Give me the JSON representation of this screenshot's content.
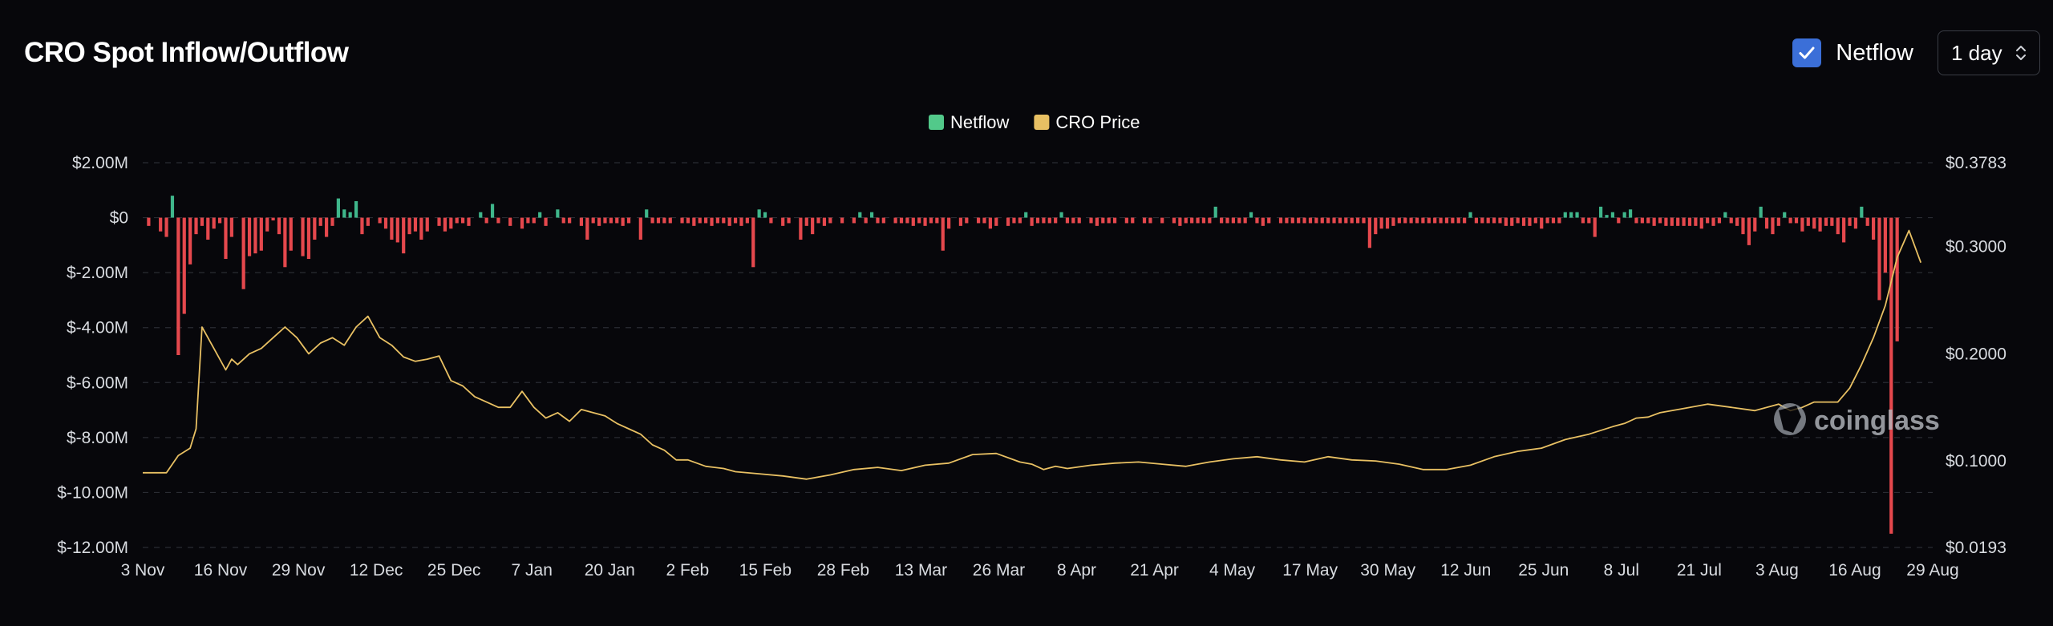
{
  "header": {
    "title": "CRO Spot Inflow/Outflow",
    "netflow_toggle_label": "Netflow",
    "netflow_checked": true,
    "interval_select_value": "1 day"
  },
  "watermark": {
    "text": "coinglass"
  },
  "colors": {
    "background": "#07070b",
    "positive_bar": "#3fb68b",
    "negative_bar": "#e5484d",
    "price_line": "#e8c063",
    "legend_netflow": "#52c98a",
    "legend_price": "#e8c063",
    "checkbox": "#3b6fd8"
  },
  "chart_data": {
    "type": "bar",
    "title": "CRO Spot Inflow/Outflow",
    "legend": {
      "placement": "top-center",
      "entries": [
        "Netflow",
        "CRO Price"
      ]
    },
    "x_tick_labels": [
      "3 Nov",
      "16 Nov",
      "29 Nov",
      "12 Dec",
      "25 Dec",
      "7 Jan",
      "20 Jan",
      "2 Feb",
      "15 Feb",
      "28 Feb",
      "13 Mar",
      "26 Mar",
      "8 Apr",
      "21 Apr",
      "4 May",
      "17 May",
      "30 May",
      "12 Jun",
      "25 Jun",
      "8 Jul",
      "21 Jul",
      "3 Aug",
      "16 Aug",
      "29 Aug"
    ],
    "y_left_tick_labels": [
      "$2.00M",
      "$0",
      "$-2.00M",
      "$-4.00M",
      "$-6.00M",
      "$-8.00M",
      "$-10.00M",
      "$-12.00M"
    ],
    "y_left_tick_values": [
      2,
      0,
      -2,
      -4,
      -6,
      -8,
      -10,
      -12
    ],
    "y_left_range": [
      -12,
      2
    ],
    "y_left_unit": "USD millions",
    "y_right_tick_labels": [
      "$0.3783",
      "$0.3000",
      "$0.2000",
      "$0.1000",
      "$0.0193"
    ],
    "y_right_tick_values": [
      0.3783,
      0.3,
      0.2,
      0.1,
      0.0193
    ],
    "y_right_range": [
      0.0193,
      0.3783
    ],
    "grid": true,
    "series": [
      {
        "name": "Netflow",
        "kind": "bar",
        "axis": "left",
        "x_day_index": [
          1,
          3,
          4,
          5,
          6,
          7,
          8,
          9,
          10,
          11,
          12,
          13,
          14,
          15,
          17,
          18,
          19,
          20,
          21,
          22,
          23,
          24,
          25,
          27,
          28,
          29,
          30,
          31,
          32,
          33,
          34,
          35,
          36,
          37,
          38,
          40,
          41,
          42,
          43,
          44,
          45,
          46,
          47,
          48,
          50,
          51,
          52,
          53,
          54,
          55,
          57,
          58,
          59,
          60,
          62,
          64,
          65,
          66,
          67,
          68,
          70,
          71,
          72,
          74,
          75,
          76,
          77,
          78,
          79,
          80,
          81,
          82,
          84,
          85,
          86,
          87,
          88,
          89,
          91,
          92,
          93,
          94,
          95,
          96,
          97,
          98,
          99,
          100,
          101,
          102,
          103,
          104,
          105,
          106,
          108,
          109,
          111,
          112,
          113,
          114,
          115,
          116,
          118,
          120,
          121,
          122,
          123,
          124,
          125,
          127,
          128,
          129,
          130,
          131,
          132,
          133,
          134,
          135,
          136,
          138,
          139,
          141,
          142,
          143,
          144,
          146,
          147,
          148,
          149,
          150,
          151,
          152,
          153,
          154,
          155,
          156,
          157,
          158,
          160,
          161,
          162,
          163,
          164,
          166,
          167,
          169,
          170,
          172,
          174,
          175,
          176,
          177,
          178,
          179,
          180,
          181,
          182,
          183,
          184,
          185,
          186,
          187,
          188,
          189,
          190,
          192,
          193,
          194,
          195,
          196,
          197,
          198,
          199,
          200,
          201,
          202,
          203,
          204,
          205,
          206,
          207,
          208,
          209,
          210,
          211,
          212,
          213,
          214,
          215,
          216,
          217,
          218,
          219,
          220,
          221,
          222,
          223,
          224,
          225,
          226,
          227,
          228,
          229,
          230,
          231,
          232,
          233,
          234,
          235,
          236,
          237,
          238,
          239,
          240,
          241,
          242,
          243,
          244,
          245,
          246,
          247,
          248,
          249,
          250,
          251,
          252,
          253,
          254,
          255,
          256,
          257,
          258,
          259,
          260,
          261,
          262,
          263,
          264,
          265,
          266,
          267,
          268,
          269,
          270,
          271,
          272,
          273,
          274,
          275,
          276,
          277,
          278,
          279,
          280,
          281,
          282,
          283,
          284,
          285,
          286,
          287,
          288,
          289,
          290,
          291,
          292,
          293,
          294,
          295,
          296,
          297,
          298,
          299,
          300,
          301,
          302
        ],
        "values": [
          -0.3,
          -0.5,
          -0.7,
          0.8,
          -5.0,
          -3.5,
          -1.7,
          -0.6,
          -0.3,
          -0.8,
          -0.4,
          -0.2,
          -1.5,
          -0.7,
          -2.6,
          -1.4,
          -1.3,
          -1.2,
          -0.5,
          -0.1,
          -0.6,
          -1.8,
          -1.2,
          -1.4,
          -1.5,
          -0.8,
          -0.3,
          -0.7,
          -0.3,
          0.7,
          0.3,
          0.2,
          0.6,
          -0.6,
          -0.3,
          -0.2,
          -0.4,
          -0.8,
          -0.9,
          -1.3,
          -0.6,
          -0.5,
          -0.8,
          -0.5,
          -0.3,
          -0.5,
          -0.4,
          -0.2,
          -0.2,
          -0.3,
          0.2,
          -0.2,
          0.5,
          -0.2,
          -0.3,
          -0.4,
          -0.2,
          -0.2,
          0.2,
          -0.3,
          0.3,
          -0.2,
          -0.2,
          -0.3,
          -0.8,
          -0.2,
          -0.3,
          -0.2,
          -0.2,
          -0.2,
          -0.3,
          -0.2,
          -0.8,
          0.3,
          -0.2,
          -0.2,
          -0.2,
          -0.2,
          -0.2,
          -0.2,
          -0.3,
          -0.2,
          -0.2,
          -0.3,
          -0.2,
          -0.2,
          -0.3,
          -0.2,
          -0.3,
          -0.2,
          -1.8,
          0.3,
          0.2,
          -0.2,
          -0.3,
          -0.2,
          -0.8,
          -0.3,
          -0.6,
          -0.2,
          -0.3,
          -0.2,
          -0.2,
          -0.2,
          0.2,
          -0.2,
          0.2,
          -0.2,
          -0.2,
          -0.2,
          -0.2,
          -0.2,
          -0.3,
          -0.2,
          -0.3,
          -0.2,
          -0.2,
          -1.2,
          -0.4,
          -0.3,
          -0.2,
          -0.2,
          -0.2,
          -0.4,
          -0.3,
          -0.3,
          -0.2,
          -0.2,
          0.2,
          -0.3,
          -0.2,
          -0.2,
          -0.2,
          -0.2,
          0.2,
          -0.2,
          -0.2,
          -0.2,
          -0.2,
          -0.3,
          -0.2,
          -0.2,
          -0.2,
          -0.2,
          -0.2,
          -0.2,
          -0.2,
          -0.2,
          -0.2,
          -0.3,
          -0.2,
          -0.2,
          -0.2,
          -0.2,
          -0.2,
          0.4,
          -0.2,
          -0.2,
          -0.2,
          -0.2,
          -0.2,
          0.2,
          -0.2,
          -0.3,
          -0.2,
          -0.2,
          -0.2,
          -0.2,
          -0.2,
          -0.2,
          -0.2,
          -0.2,
          -0.2,
          -0.2,
          -0.2,
          -0.2,
          -0.2,
          -0.2,
          -0.2,
          -0.2,
          -1.1,
          -0.6,
          -0.4,
          -0.4,
          -0.3,
          -0.2,
          -0.2,
          -0.2,
          -0.2,
          -0.2,
          -0.2,
          -0.2,
          -0.2,
          -0.2,
          -0.2,
          -0.2,
          -0.2,
          0.2,
          -0.2,
          -0.2,
          -0.2,
          -0.2,
          -0.2,
          -0.3,
          -0.3,
          -0.2,
          -0.3,
          -0.3,
          -0.2,
          -0.4,
          -0.2,
          -0.2,
          -0.2,
          0.2,
          0.2,
          0.2,
          -0.2,
          -0.2,
          -0.7,
          0.4,
          0.1,
          0.2,
          -0.2,
          0.2,
          0.3,
          -0.2,
          -0.2,
          -0.2,
          -0.3,
          -0.2,
          -0.3,
          -0.3,
          -0.3,
          -0.3,
          -0.3,
          -0.3,
          -0.4,
          -0.2,
          -0.3,
          -0.2,
          0.2,
          -0.2,
          -0.3,
          -0.6,
          -1.0,
          -0.5,
          0.4,
          -0.4,
          -0.6,
          -0.3,
          0.2,
          -0.2,
          -0.2,
          -0.5,
          -0.3,
          -0.4,
          -0.5,
          -0.3,
          -0.3,
          -0.6,
          -0.9,
          -0.3,
          -0.4,
          0.4,
          -0.3,
          -0.8,
          -3.0,
          -2.0,
          -11.5,
          -4.5
        ]
      },
      {
        "name": "CRO Price",
        "kind": "line",
        "axis": "right",
        "x_day_index": [
          0,
          4,
          6,
          8,
          9,
          10,
          12,
          14,
          15,
          16,
          18,
          20,
          22,
          24,
          26,
          28,
          30,
          32,
          34,
          36,
          38,
          40,
          42,
          44,
          46,
          48,
          50,
          52,
          54,
          56,
          58,
          60,
          62,
          64,
          66,
          68,
          70,
          72,
          74,
          76,
          78,
          80,
          82,
          84,
          86,
          88,
          90,
          92,
          95,
          98,
          100,
          104,
          108,
          112,
          116,
          120,
          124,
          128,
          132,
          136,
          140,
          144,
          148,
          150,
          152,
          154,
          156,
          160,
          164,
          168,
          172,
          176,
          180,
          184,
          188,
          192,
          196,
          200,
          204,
          208,
          212,
          216,
          220,
          224,
          228,
          232,
          236,
          240,
          244,
          248,
          250,
          252,
          254,
          256,
          260,
          264,
          268,
          272,
          276,
          278,
          280,
          282,
          284,
          286,
          288,
          290,
          292,
          294,
          296,
          298,
          300,
          302
        ],
        "values": [
          0.089,
          0.089,
          0.105,
          0.112,
          0.13,
          0.225,
          0.205,
          0.185,
          0.195,
          0.19,
          0.2,
          0.205,
          0.215,
          0.225,
          0.215,
          0.2,
          0.21,
          0.215,
          0.208,
          0.225,
          0.235,
          0.215,
          0.208,
          0.197,
          0.193,
          0.195,
          0.198,
          0.175,
          0.17,
          0.16,
          0.155,
          0.15,
          0.15,
          0.165,
          0.15,
          0.14,
          0.145,
          0.137,
          0.148,
          0.145,
          0.142,
          0.135,
          0.13,
          0.125,
          0.115,
          0.11,
          0.101,
          0.101,
          0.095,
          0.093,
          0.09,
          0.088,
          0.086,
          0.083,
          0.087,
          0.092,
          0.094,
          0.091,
          0.096,
          0.098,
          0.106,
          0.107,
          0.099,
          0.097,
          0.092,
          0.095,
          0.093,
          0.096,
          0.098,
          0.099,
          0.097,
          0.095,
          0.099,
          0.102,
          0.104,
          0.101,
          0.099,
          0.104,
          0.101,
          0.1,
          0.097,
          0.092,
          0.092,
          0.096,
          0.104,
          0.109,
          0.112,
          0.12,
          0.125,
          0.132,
          0.135,
          0.14,
          0.141,
          0.145,
          0.149,
          0.153,
          0.15,
          0.147,
          0.153,
          0.147,
          0.15,
          0.155,
          0.155,
          0.155,
          0.168,
          0.19,
          0.215,
          0.245,
          0.29,
          0.315,
          0.285
        ]
      }
    ]
  }
}
